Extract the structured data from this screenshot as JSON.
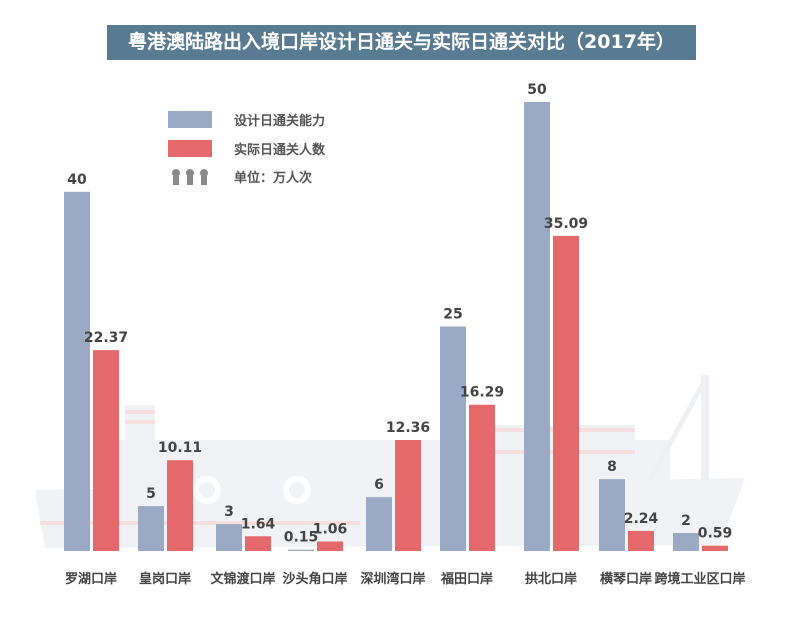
{
  "colors": {
    "design": "#9aaac4",
    "actual": "#e5686a",
    "title_bg": "#587b92"
  },
  "chart_data": {
    "type": "bar",
    "title": "粤港澳陆路出入境口岸设计日通关与实际日通关对比（2017年）",
    "unit": "单位：万人次",
    "categories": [
      "罗湖口岸",
      "皇岗口岸",
      "文锦渡口岸",
      "沙头角口岸",
      "深圳湾口岸",
      "福田口岸",
      "拱北口岸",
      "横琴口岸",
      "跨境工业区口岸"
    ],
    "series": [
      {
        "name": "设计日通关能力",
        "values": [
          40,
          5,
          3,
          0.15,
          6,
          25,
          50,
          8,
          2
        ],
        "labels": [
          "40",
          "5",
          "3",
          "0.15",
          "6",
          "25",
          "50",
          "8",
          "2"
        ]
      },
      {
        "name": "实际日通关人数",
        "values": [
          22.37,
          10.11,
          1.64,
          1.06,
          12.36,
          16.29,
          35.09,
          2.24,
          0.59
        ],
        "labels": [
          "22.37",
          "10.11",
          "1.64",
          "1.06",
          "12.36",
          "16.29",
          "35.09",
          "2.24",
          "0.59"
        ]
      }
    ],
    "ylim": [
      0,
      50
    ],
    "grid": false,
    "legend": "top-left"
  }
}
